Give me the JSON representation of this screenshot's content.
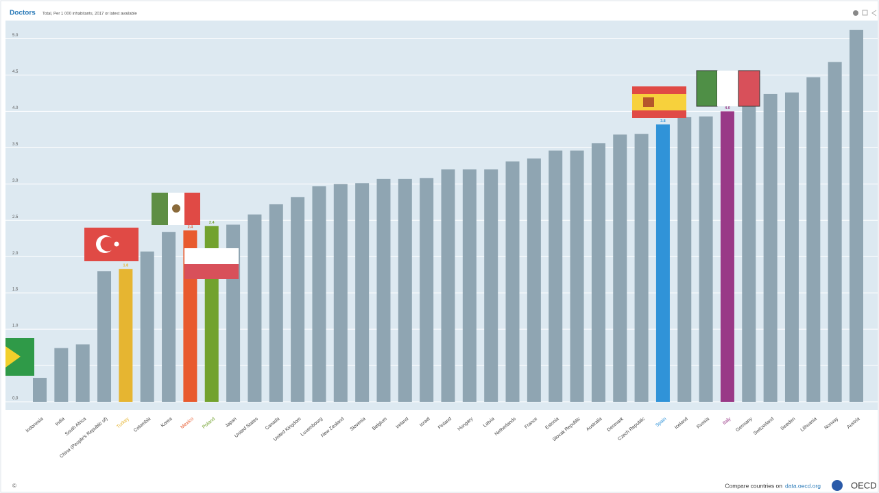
{
  "chart_data": {
    "type": "bar",
    "title": "Doctors",
    "subtitle": "Total, Per 1 000 inhabitants, 2017 or latest available",
    "categories": [
      "Indonesia",
      "India",
      "South Africa",
      "China (People's Republic of)",
      "Turkey",
      "Colombia",
      "Korea",
      "Mexico",
      "Poland",
      "Japan",
      "United States",
      "Canada",
      "United Kingdom",
      "Luxembourg",
      "New Zealand",
      "Slovenia",
      "Belgium",
      "Ireland",
      "Israel",
      "Finland",
      "Hungary",
      "Latvia",
      "Netherlands",
      "France",
      "Estonia",
      "Slovak Republic",
      "Australia",
      "Denmark",
      "Czech Republic",
      "Spain",
      "Iceland",
      "Russia",
      "Italy",
      "Germany",
      "Switzerland",
      "Sweden",
      "Lithuania",
      "Norway",
      "Austria"
    ],
    "values": [
      0.33,
      0.74,
      0.79,
      1.8,
      1.83,
      2.07,
      2.34,
      2.36,
      2.42,
      2.44,
      2.58,
      2.72,
      2.82,
      2.97,
      3.0,
      3.01,
      3.07,
      3.07,
      3.08,
      3.2,
      3.2,
      3.2,
      3.31,
      3.35,
      3.46,
      3.46,
      3.56,
      3.68,
      3.69,
      3.82,
      3.92,
      3.93,
      4.0,
      4.12,
      4.24,
      4.26,
      4.47,
      4.68,
      5.12
    ],
    "value_labels": [
      null,
      null,
      null,
      null,
      "1.8",
      null,
      null,
      "2.4",
      "2.4",
      null,
      null,
      null,
      null,
      null,
      null,
      null,
      null,
      null,
      null,
      null,
      null,
      null,
      null,
      null,
      null,
      null,
      null,
      null,
      null,
      "3.8",
      null,
      null,
      "4.0",
      null,
      null,
      null,
      null,
      null,
      null
    ],
    "colors": [
      "#8fa5b2",
      "#8fa5b2",
      "#8fa5b2",
      "#8fa5b2",
      "#e6b531",
      "#8fa5b2",
      "#8fa5b2",
      "#e85a2e",
      "#72a22e",
      "#8fa5b2",
      "#8fa5b2",
      "#8fa5b2",
      "#8fa5b2",
      "#8fa5b2",
      "#8fa5b2",
      "#8fa5b2",
      "#8fa5b2",
      "#8fa5b2",
      "#8fa5b2",
      "#8fa5b2",
      "#8fa5b2",
      "#8fa5b2",
      "#8fa5b2",
      "#8fa5b2",
      "#8fa5b2",
      "#8fa5b2",
      "#8fa5b2",
      "#8fa5b2",
      "#8fa5b2",
      "#3093d8",
      "#8fa5b2",
      "#8fa5b2",
      "#993987",
      "#8fa5b2",
      "#8fa5b2",
      "#8fa5b2",
      "#8fa5b2",
      "#8fa5b2",
      "#8fa5b2"
    ],
    "ylim": [
      0,
      5.25
    ],
    "yticks": [
      {
        "value": 0,
        "label": "0.0"
      },
      0.5,
      {
        "value": 1,
        "label": "1.0"
      },
      1.5,
      {
        "value": 2,
        "label": "2.0"
      },
      2.5,
      {
        "value": 3,
        "label": "3.0"
      },
      3.5,
      {
        "value": 4,
        "label": "4.0"
      },
      4.5,
      {
        "value": 5,
        "label": "5.0"
      }
    ],
    "grid": true
  },
  "footer": {
    "copyright": "©",
    "compare": "Compare countries on",
    "link": "data.oecd.org",
    "brand": "OECD"
  }
}
